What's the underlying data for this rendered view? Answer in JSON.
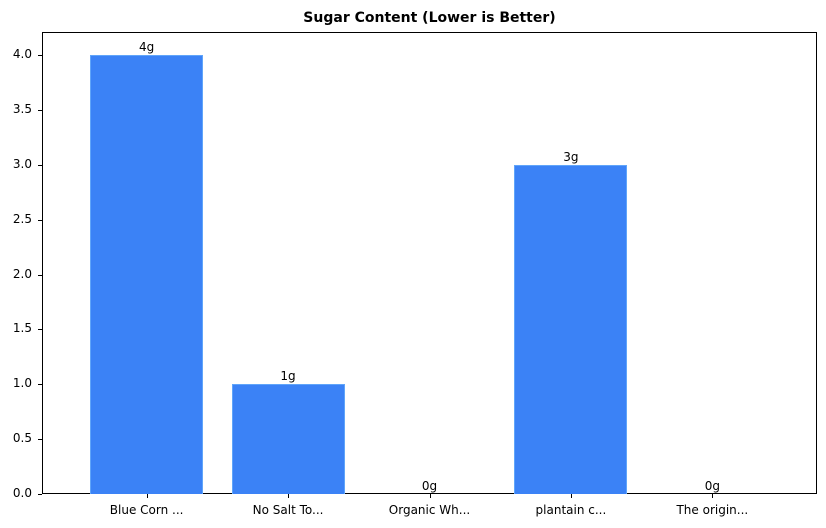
{
  "chart_data": {
    "type": "bar",
    "title": "Sugar Content (Lower is Better)",
    "xlabel": "",
    "ylabel": "",
    "categories": [
      "Blue Corn ...",
      "No Salt To...",
      "Organic Wh...",
      "plantain c...",
      "The origin..."
    ],
    "values": [
      4,
      1,
      0,
      3,
      0
    ],
    "data_labels": [
      "4g",
      "1g",
      "0g",
      "3g",
      "0g"
    ],
    "ylim": [
      0,
      4.2
    ],
    "yticks": [
      "0.0",
      "0.5",
      "1.0",
      "1.5",
      "2.0",
      "2.5",
      "3.0",
      "3.5",
      "4.0"
    ],
    "grid": false,
    "legend": null,
    "bar_color": "#3b82f6"
  }
}
